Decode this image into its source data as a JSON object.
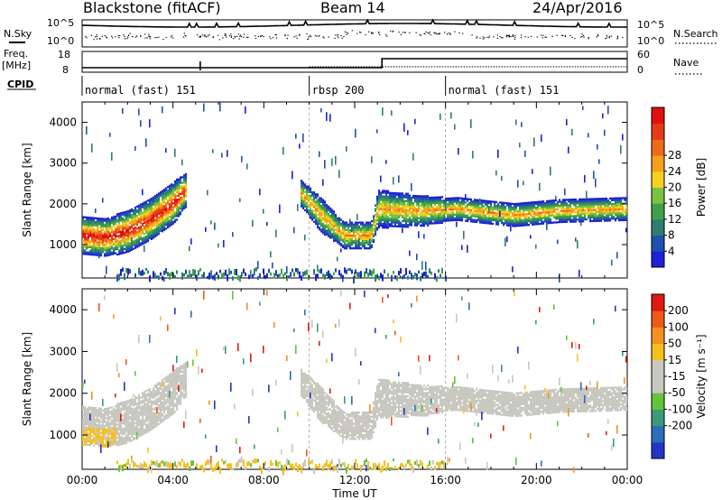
{
  "header": {
    "station": "Blackstone (fitACF)",
    "beam": "Beam 14",
    "date": "24/Apr/2016"
  },
  "summary": {
    "nsky_label": "N.Sky",
    "nsky_ticks": [
      "10^5",
      "10^0"
    ],
    "nsearch_label": "N.Search",
    "freq_label": "Freq.",
    "freq_unit": "[MHz]",
    "freq_ticks": [
      "18",
      "8"
    ],
    "right_ticks_top": [
      "10^5",
      "10^0"
    ],
    "right_ticks_freq": [
      "60",
      "0"
    ],
    "nave_label": "Nave",
    "cpid_label": "CPID",
    "cpid_segments": [
      {
        "name": "normal (fast) 151",
        "start": 0,
        "end": 10
      },
      {
        "name": "rbsp 200",
        "start": 10,
        "end": 16
      },
      {
        "name": "normal (fast) 151",
        "start": 16,
        "end": 24
      }
    ]
  },
  "chart_data": [
    {
      "type": "heatmap",
      "name": "power",
      "ylabel": "Slant Range [km]",
      "xlabel": "Time UT",
      "x_ticks": [
        "00:00",
        "04:00",
        "08:00",
        "12:00",
        "16:00",
        "20:00",
        "00:00"
      ],
      "x_range_hours": [
        0,
        24
      ],
      "ylim": [
        180,
        4500
      ],
      "y_ticks": [
        1000,
        2000,
        3000,
        4000
      ],
      "colorbar": {
        "label": "Power [dB]",
        "ticks": [
          4,
          8,
          12,
          16,
          20,
          24,
          28
        ],
        "colors": [
          "#1f1fd8",
          "#1f4fb0",
          "#2e7d6e",
          "#3fa04a",
          "#7ac241",
          "#f5d020",
          "#f59f1a",
          "#ef6a17",
          "#e63a17",
          "#e01010"
        ]
      },
      "scatter_band": [
        {
          "t": 0.0,
          "r": 1200,
          "w": 450
        },
        {
          "t": 1.0,
          "r": 1150,
          "w": 450
        },
        {
          "t": 2.0,
          "r": 1300,
          "w": 500
        },
        {
          "t": 3.0,
          "r": 1600,
          "w": 500
        },
        {
          "t": 4.0,
          "r": 2000,
          "w": 500
        },
        {
          "t": 4.5,
          "r": 2300,
          "w": 400
        },
        {
          "t": 9.5,
          "r": 2300,
          "w": 300
        },
        {
          "t": 10.5,
          "r": 1700,
          "w": 400
        },
        {
          "t": 11.5,
          "r": 1200,
          "w": 300
        },
        {
          "t": 12.7,
          "r": 1200,
          "w": 300
        },
        {
          "t": 13.0,
          "r": 1850,
          "w": 450
        },
        {
          "t": 15.0,
          "r": 1800,
          "w": 350
        },
        {
          "t": 16.5,
          "r": 1850,
          "w": 250
        },
        {
          "t": 19.0,
          "r": 1700,
          "w": 250
        },
        {
          "t": 21.0,
          "r": 1800,
          "w": 250
        },
        {
          "t": 24.0,
          "r": 1850,
          "w": 250
        }
      ]
    },
    {
      "type": "heatmap",
      "name": "velocity",
      "ylabel": "Slant Range [km]",
      "xlabel": "Time UT",
      "x_ticks": [
        "00:00",
        "04:00",
        "08:00",
        "12:00",
        "16:00",
        "20:00",
        "00:00"
      ],
      "x_range_hours": [
        0,
        24
      ],
      "ylim": [
        180,
        4500
      ],
      "y_ticks": [
        1000,
        2000,
        3000,
        4000
      ],
      "colorbar": {
        "label": "Velocity [m s⁻¹]",
        "ticks": [
          200,
          100,
          50,
          15,
          -15,
          -50,
          -100,
          -200
        ],
        "colors": [
          "#2235c9",
          "#2a6fb8",
          "#3a9a7a",
          "#63c43a",
          "#c8c8c0",
          "#c8c8c0",
          "#f5c020",
          "#f59020",
          "#ee5a18",
          "#e01a12"
        ]
      }
    }
  ]
}
